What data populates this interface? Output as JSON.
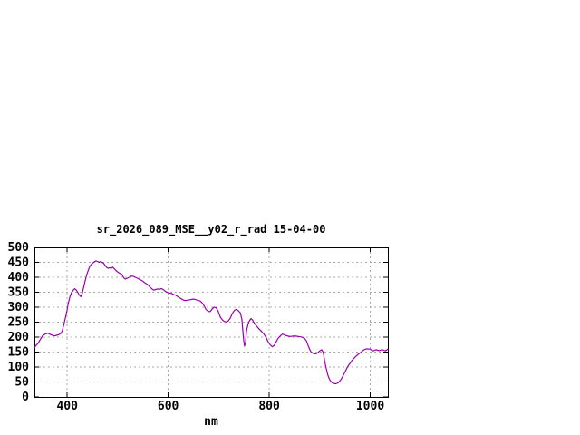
{
  "window": {
    "background": "#ffffff"
  },
  "colors": {
    "axis": "#000000",
    "grid": "#a8a8a8",
    "text": "#000000",
    "line": "#9900aa"
  },
  "chart_data": {
    "type": "line",
    "title": "sr_2026_089_MSE__y02_r_rad 15-04-00",
    "xlabel": "nm",
    "ylabel": "",
    "xlim": [
      335,
      1035
    ],
    "ylim": [
      0,
      500
    ],
    "xticks": [
      400,
      600,
      800,
      1000
    ],
    "yticks": [
      0,
      50,
      100,
      150,
      200,
      250,
      300,
      350,
      400,
      450,
      500
    ],
    "grid": true,
    "grid_style": "dashed",
    "legend": "none",
    "series": [
      {
        "color": "#9900aa",
        "points": [
          [
            335,
            165
          ],
          [
            338,
            172
          ],
          [
            342,
            179
          ],
          [
            346,
            190
          ],
          [
            351,
            204
          ],
          [
            356,
            210
          ],
          [
            362,
            213
          ],
          [
            366,
            209
          ],
          [
            371,
            206
          ],
          [
            375,
            204
          ],
          [
            379,
            206
          ],
          [
            383,
            208
          ],
          [
            387,
            212
          ],
          [
            390,
            220
          ],
          [
            393,
            240
          ],
          [
            396,
            262
          ],
          [
            399,
            285
          ],
          [
            402,
            312
          ],
          [
            405,
            333
          ],
          [
            408,
            347
          ],
          [
            412,
            357
          ],
          [
            415,
            362
          ],
          [
            418,
            357
          ],
          [
            421,
            349
          ],
          [
            424,
            340
          ],
          [
            427,
            335
          ],
          [
            430,
            348
          ],
          [
            433,
            370
          ],
          [
            436,
            392
          ],
          [
            439,
            410
          ],
          [
            442,
            425
          ],
          [
            445,
            438
          ],
          [
            448,
            444
          ],
          [
            451,
            448
          ],
          [
            454,
            452
          ],
          [
            457,
            455
          ],
          [
            460,
            453
          ],
          [
            463,
            450
          ],
          [
            466,
            453
          ],
          [
            469,
            450
          ],
          [
            472,
            447
          ],
          [
            475,
            440
          ],
          [
            478,
            433
          ],
          [
            481,
            430
          ],
          [
            484,
            432
          ],
          [
            487,
            430
          ],
          [
            490,
            434
          ],
          [
            493,
            429
          ],
          [
            496,
            423
          ],
          [
            500,
            418
          ],
          [
            504,
            413
          ],
          [
            508,
            410
          ],
          [
            512,
            398
          ],
          [
            515,
            394
          ],
          [
            519,
            397
          ],
          [
            523,
            400
          ],
          [
            527,
            404
          ],
          [
            531,
            403
          ],
          [
            535,
            400
          ],
          [
            539,
            397
          ],
          [
            543,
            393
          ],
          [
            547,
            390
          ],
          [
            551,
            385
          ],
          [
            555,
            380
          ],
          [
            559,
            376
          ],
          [
            563,
            369
          ],
          [
            567,
            362
          ],
          [
            571,
            357
          ],
          [
            575,
            359
          ],
          [
            579,
            361
          ],
          [
            583,
            360
          ],
          [
            587,
            362
          ],
          [
            591,
            358
          ],
          [
            595,
            352
          ],
          [
            599,
            349
          ],
          [
            603,
            347
          ],
          [
            607,
            346
          ],
          [
            611,
            342
          ],
          [
            615,
            340
          ],
          [
            619,
            335
          ],
          [
            623,
            331
          ],
          [
            627,
            327
          ],
          [
            631,
            323
          ],
          [
            635,
            322
          ],
          [
            639,
            324
          ],
          [
            643,
            325
          ],
          [
            647,
            326
          ],
          [
            651,
            327
          ],
          [
            655,
            325
          ],
          [
            659,
            323
          ],
          [
            663,
            321
          ],
          [
            667,
            315
          ],
          [
            671,
            305
          ],
          [
            675,
            292
          ],
          [
            679,
            286
          ],
          [
            683,
            285
          ],
          [
            687,
            294
          ],
          [
            691,
            300
          ],
          [
            695,
            298
          ],
          [
            699,
            286
          ],
          [
            703,
            268
          ],
          [
            707,
            258
          ],
          [
            711,
            252
          ],
          [
            715,
            251
          ],
          [
            719,
            254
          ],
          [
            723,
            264
          ],
          [
            727,
            279
          ],
          [
            731,
            289
          ],
          [
            735,
            293
          ],
          [
            739,
            288
          ],
          [
            743,
            281
          ],
          [
            746,
            258
          ],
          [
            749,
            195
          ],
          [
            751,
            170
          ],
          [
            753,
            180
          ],
          [
            755,
            220
          ],
          [
            758,
            243
          ],
          [
            761,
            255
          ],
          [
            764,
            262
          ],
          [
            767,
            257
          ],
          [
            770,
            248
          ],
          [
            774,
            239
          ],
          [
            778,
            231
          ],
          [
            782,
            224
          ],
          [
            786,
            217
          ],
          [
            790,
            209
          ],
          [
            794,
            198
          ],
          [
            798,
            184
          ],
          [
            802,
            174
          ],
          [
            806,
            168
          ],
          [
            810,
            172
          ],
          [
            814,
            185
          ],
          [
            818,
            197
          ],
          [
            822,
            204
          ],
          [
            826,
            210
          ],
          [
            830,
            208
          ],
          [
            834,
            205
          ],
          [
            838,
            203
          ],
          [
            842,
            202
          ],
          [
            846,
            203
          ],
          [
            850,
            204
          ],
          [
            854,
            203
          ],
          [
            858,
            202
          ],
          [
            862,
            201
          ],
          [
            866,
            199
          ],
          [
            870,
            196
          ],
          [
            874,
            186
          ],
          [
            877,
            172
          ],
          [
            880,
            160
          ],
          [
            883,
            150
          ],
          [
            886,
            146
          ],
          [
            889,
            145
          ],
          [
            892,
            144
          ],
          [
            895,
            146
          ],
          [
            898,
            151
          ],
          [
            901,
            155
          ],
          [
            904,
            158
          ],
          [
            907,
            149
          ],
          [
            910,
            118
          ],
          [
            913,
            95
          ],
          [
            916,
            74
          ],
          [
            919,
            60
          ],
          [
            922,
            52
          ],
          [
            925,
            47
          ],
          [
            928,
            45
          ],
          [
            931,
            44
          ],
          [
            934,
            45
          ],
          [
            937,
            48
          ],
          [
            940,
            54
          ],
          [
            943,
            60
          ],
          [
            946,
            70
          ],
          [
            949,
            80
          ],
          [
            952,
            90
          ],
          [
            955,
            100
          ],
          [
            958,
            108
          ],
          [
            961,
            115
          ],
          [
            964,
            122
          ],
          [
            967,
            128
          ],
          [
            970,
            133
          ],
          [
            973,
            138
          ],
          [
            976,
            142
          ],
          [
            979,
            146
          ],
          [
            982,
            150
          ],
          [
            985,
            154
          ],
          [
            988,
            158
          ],
          [
            991,
            160
          ],
          [
            994,
            161
          ],
          [
            997,
            160
          ],
          [
            1000,
            160
          ],
          [
            1003,
            156
          ],
          [
            1006,
            154
          ],
          [
            1009,
            156
          ],
          [
            1012,
            158
          ],
          [
            1015,
            156
          ],
          [
            1018,
            155
          ],
          [
            1021,
            157
          ],
          [
            1024,
            158
          ],
          [
            1027,
            156
          ],
          [
            1030,
            154
          ],
          [
            1033,
            157
          ],
          [
            1035,
            160
          ]
        ]
      }
    ]
  }
}
